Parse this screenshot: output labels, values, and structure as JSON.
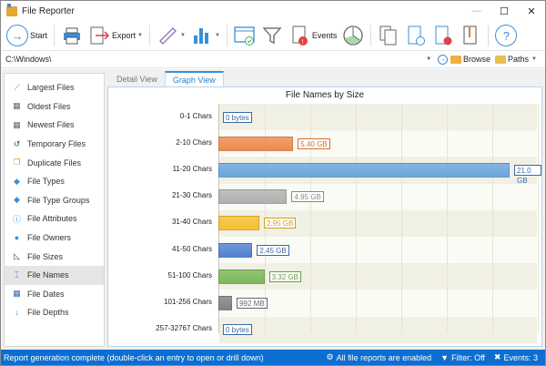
{
  "window": {
    "title": "File Reporter",
    "minimize": "—",
    "maximize": "☐",
    "close": "✕"
  },
  "toolbar": {
    "start_label": "Start",
    "export_label": "Export",
    "events_label": "Events"
  },
  "pathbar": {
    "path": "C:\\Windows\\",
    "browse_label": "Browse",
    "paths_label": "Paths"
  },
  "sidebar": {
    "items": [
      {
        "label": "Largest Files",
        "icon": "ruler-icon"
      },
      {
        "label": "Oldest Files",
        "icon": "calendar-old-icon"
      },
      {
        "label": "Newest Files",
        "icon": "calendar-new-icon"
      },
      {
        "label": "Temporary Files",
        "icon": "history-icon"
      },
      {
        "label": "Duplicate Files",
        "icon": "duplicate-icon"
      },
      {
        "label": "File Types",
        "icon": "tag-icon"
      },
      {
        "label": "File Type Groups",
        "icon": "tags-icon"
      },
      {
        "label": "File Attributes",
        "icon": "info-icon"
      },
      {
        "label": "File Owners",
        "icon": "user-icon"
      },
      {
        "label": "File Sizes",
        "icon": "triangle-ruler-icon"
      },
      {
        "label": "File Names",
        "icon": "rename-icon",
        "active": true
      },
      {
        "label": "File Dates",
        "icon": "calendar-icon"
      },
      {
        "label": "File Depths",
        "icon": "arrow-down-icon"
      }
    ]
  },
  "tabs": [
    {
      "label": "Detail View"
    },
    {
      "label": "Graph View",
      "active": true
    }
  ],
  "chart_data": {
    "type": "bar",
    "orientation": "horizontal",
    "title": "File Names by Size",
    "xlabel": "",
    "ylabel": "",
    "categories": [
      "0-1 Chars",
      "2-10 Chars",
      "11-20 Chars",
      "21-30 Chars",
      "31-40 Chars",
      "41-50 Chars",
      "51-100 Chars",
      "101-256 Chars",
      "257-32767 Chars"
    ],
    "values_gb": [
      0,
      5.4,
      21.0,
      4.95,
      2.95,
      2.45,
      3.32,
      0.992,
      0
    ],
    "labels": [
      "0 bytes",
      "5.40 GB",
      "21.0 GB",
      "4.95 GB",
      "2.95 GB",
      "2.45 GB",
      "3.32 GB",
      "992 MB",
      "0 bytes"
    ],
    "colors": [
      "#4a7fc0",
      "#ee8a48",
      "#6aa6e0",
      "#b0b0b0",
      "#f8c030",
      "#4f80d0",
      "#7cb85a",
      "#808080",
      "#4a7fc0"
    ],
    "label_colors": [
      "#3a6aa8",
      "#d07030",
      "#3a6aa8",
      "#888888",
      "#d0a020",
      "#3a6aa8",
      "#6a9a48",
      "#666666",
      "#3a6aa8"
    ],
    "xlim": [
      0,
      21.0
    ],
    "grid": true,
    "legend": "none"
  },
  "status": {
    "message": "Report generation complete (double-click an entry to open or drill down)",
    "reports": "All file reports are enabled",
    "filter": "Filter: Off",
    "events": "Events: 3"
  }
}
